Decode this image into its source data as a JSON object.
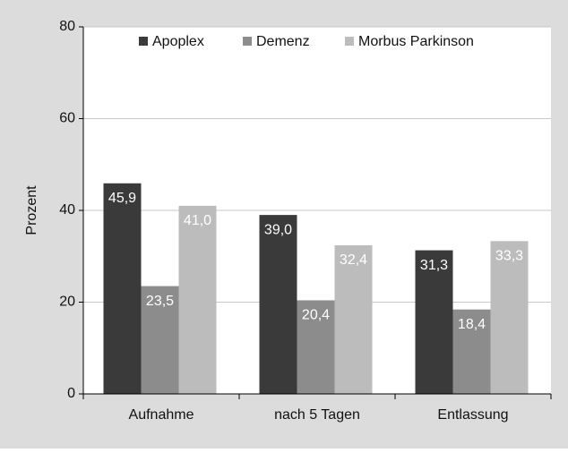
{
  "chart_data": {
    "type": "bar",
    "y_label": "Prozent",
    "categories": [
      "Aufnahme",
      "nach 5 Tagen",
      "Entlassung"
    ],
    "series": [
      {
        "name": "Apoplex",
        "color": "#3a3a3a",
        "values": [
          45.9,
          39.0,
          31.3
        ],
        "value_labels": [
          "45,9",
          "39,0",
          "31,3"
        ]
      },
      {
        "name": "Demenz",
        "color": "#8c8c8c",
        "values": [
          23.5,
          20.4,
          18.4
        ],
        "value_labels": [
          "23,5",
          "20,4",
          "18,4"
        ]
      },
      {
        "name": "Morbus Parkinson",
        "color": "#bcbcbc",
        "values": [
          41.0,
          32.4,
          33.3
        ],
        "value_labels": [
          "41,0",
          "32,4",
          "33,3"
        ]
      }
    ],
    "ylim": [
      0,
      80
    ],
    "yticks": [
      0,
      20,
      40,
      60,
      80
    ],
    "grid": true,
    "legend": "top"
  }
}
